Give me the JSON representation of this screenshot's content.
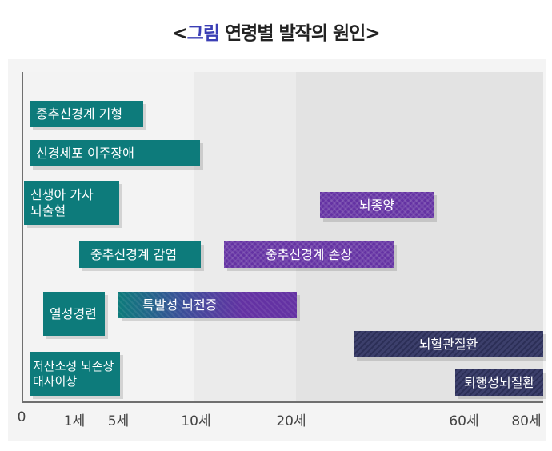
{
  "title": {
    "bracket_open": "<",
    "accent": "그림",
    "rest": " 연령별 발작의 원인",
    "bracket_close": ">"
  },
  "colors": {
    "accent": "#3b3fb5",
    "teal": "#0d7b7b",
    "purple": "#6432a3",
    "navy": "#2c2f57",
    "gradient_start": "#0d7b7b"
  },
  "axis": {
    "ticks": [
      "0",
      "1세",
      "5세",
      "10세",
      "20세",
      "60세",
      "80세"
    ]
  },
  "bars": [
    {
      "label": "중추신경계 기형"
    },
    {
      "label": "신경세포 이주장애"
    },
    {
      "label_line1": "신생아 가사",
      "label_line2": "뇌출혈"
    },
    {
      "label": "뇌종양"
    },
    {
      "label": "중추신경계 감염"
    },
    {
      "label": "중추신경계 손상"
    },
    {
      "label": "열성경련"
    },
    {
      "label": "특발성 뇌전증"
    },
    {
      "label": "뇌혈관질환"
    },
    {
      "label_line1": "저산소성 뇌손상",
      "label_line2": "대사이상"
    },
    {
      "label": "퇴행성뇌질환"
    }
  ]
}
